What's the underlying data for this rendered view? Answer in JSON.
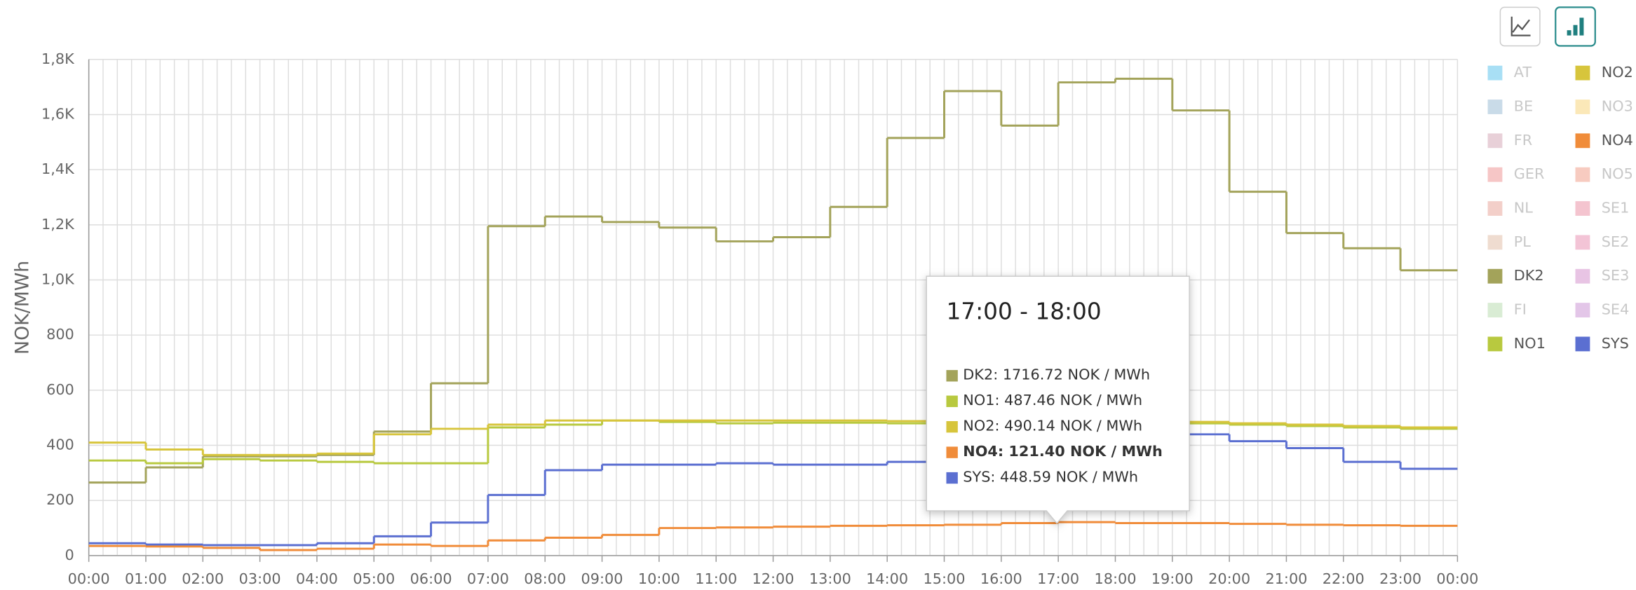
{
  "chart_data": {
    "type": "step-line",
    "y_label": "NOK/MWh",
    "x": [
      0,
      1,
      2,
      3,
      4,
      5,
      6,
      7,
      8,
      9,
      10,
      11,
      12,
      13,
      14,
      15,
      16,
      17,
      18,
      19,
      20,
      21,
      22,
      23
    ],
    "xlim": [
      0,
      24
    ],
    "xticks": [
      {
        "value": 0,
        "label": "00:00"
      },
      {
        "value": 1,
        "label": "01:00"
      },
      {
        "value": 2,
        "label": "02:00"
      },
      {
        "value": 3,
        "label": "03:00"
      },
      {
        "value": 4,
        "label": "04:00"
      },
      {
        "value": 5,
        "label": "05:00"
      },
      {
        "value": 6,
        "label": "06:00"
      },
      {
        "value": 7,
        "label": "07:00"
      },
      {
        "value": 8,
        "label": "08:00"
      },
      {
        "value": 9,
        "label": "09:00"
      },
      {
        "value": 10,
        "label": "10:00"
      },
      {
        "value": 11,
        "label": "11:00"
      },
      {
        "value": 12,
        "label": "12:00"
      },
      {
        "value": 13,
        "label": "13:00"
      },
      {
        "value": 14,
        "label": "14:00"
      },
      {
        "value": 15,
        "label": "15:00"
      },
      {
        "value": 16,
        "label": "16:00"
      },
      {
        "value": 17,
        "label": "17:00"
      },
      {
        "value": 18,
        "label": "18:00"
      },
      {
        "value": 19,
        "label": "19:00"
      },
      {
        "value": 20,
        "label": "20:00"
      },
      {
        "value": 21,
        "label": "21:00"
      },
      {
        "value": 22,
        "label": "22:00"
      },
      {
        "value": 23,
        "label": "23:00"
      },
      {
        "value": 24,
        "label": "00:00"
      }
    ],
    "ylim": [
      0,
      1800
    ],
    "yticks": [
      0,
      200,
      400,
      600,
      800,
      {
        "value": 1000,
        "label": "1,0K"
      },
      {
        "value": 1200,
        "label": "1,2K"
      },
      {
        "value": 1400,
        "label": "1,4K"
      },
      {
        "value": 1600,
        "label": "1,6K"
      },
      {
        "value": 1800,
        "label": "1,8K"
      }
    ],
    "grid": true,
    "series": [
      {
        "name": "DK2",
        "color": "#a3a35a",
        "values": [
          265,
          320,
          360,
          360,
          365,
          450,
          625,
          1195,
          1230,
          1210,
          1190,
          1140,
          1155,
          1265,
          1515,
          1685,
          1560,
          1716.72,
          1730,
          1615,
          1320,
          1170,
          1115,
          1035
        ]
      },
      {
        "name": "NO1",
        "color": "#b8c93f",
        "values": [
          345,
          335,
          350,
          345,
          340,
          335,
          335,
          465,
          475,
          490,
          485,
          480,
          482,
          482,
          480,
          480,
          482,
          487.46,
          485,
          480,
          475,
          470,
          465,
          460
        ]
      },
      {
        "name": "NO2",
        "color": "#d7c53c",
        "values": [
          410,
          385,
          365,
          365,
          370,
          440,
          460,
          475,
          490,
          490,
          490,
          490,
          490,
          490,
          488,
          490,
          490,
          490.14,
          490,
          485,
          480,
          475,
          470,
          465
        ]
      },
      {
        "name": "SYS",
        "color": "#5b6fd1",
        "values": [
          45,
          40,
          38,
          38,
          45,
          70,
          120,
          220,
          310,
          330,
          330,
          335,
          330,
          330,
          340,
          350,
          400,
          448.59,
          448,
          440,
          415,
          390,
          340,
          315
        ]
      },
      {
        "name": "NO4",
        "color": "#f08c3a",
        "values": [
          35,
          33,
          28,
          20,
          25,
          40,
          35,
          55,
          65,
          75,
          100,
          102,
          105,
          108,
          110,
          112,
          118,
          121.4,
          118,
          118,
          115,
          112,
          110,
          108
        ]
      }
    ],
    "tooltip": {
      "title": "17:00 - 18:00",
      "lines": [
        {
          "color": "#a3a35a",
          "text": "DK2: 1716.72 NOK / MWh"
        },
        {
          "color": "#b8c93f",
          "text": "NO1: 487.46 NOK / MWh"
        },
        {
          "color": "#d7c53c",
          "text": "NO2: 490.14 NOK / MWh"
        },
        {
          "color": "#f08c3a",
          "text": "NO4: 121.40 NOK / MWh",
          "bold": true
        },
        {
          "color": "#5b6fd1",
          "text": "SYS: 448.59 NOK / MWh"
        }
      ]
    },
    "legend": [
      [
        {
          "name": "AT",
          "color": "#a8dff5",
          "hidden": true
        },
        {
          "name": "BE",
          "color": "#c9dbe8",
          "hidden": true
        },
        {
          "name": "FR",
          "color": "#e8d0d8",
          "hidden": true
        },
        {
          "name": "GER",
          "color": "#f6c6c6",
          "hidden": true
        },
        {
          "name": "NL",
          "color": "#f3cfc9",
          "hidden": true
        },
        {
          "name": "PL",
          "color": "#efdcd0",
          "hidden": true
        },
        {
          "name": "DK2",
          "color": "#a3a35a",
          "hidden": false
        },
        {
          "name": "FI",
          "color": "#d9ecd4",
          "hidden": true
        },
        {
          "name": "NO1",
          "color": "#b8c93f",
          "hidden": false
        }
      ],
      [
        {
          "name": "NO2",
          "color": "#d7c53c",
          "hidden": false
        },
        {
          "name": "NO3",
          "color": "#fbe8b8",
          "hidden": true
        },
        {
          "name": "NO4",
          "color": "#f08c3a",
          "hidden": false
        },
        {
          "name": "NO5",
          "color": "#f7cbc0",
          "hidden": true
        },
        {
          "name": "SE1",
          "color": "#f4c4cf",
          "hidden": true
        },
        {
          "name": "SE2",
          "color": "#f3c4d6",
          "hidden": true
        },
        {
          "name": "SE3",
          "color": "#e8c4e4",
          "hidden": true
        },
        {
          "name": "SE4",
          "color": "#e3c6e8",
          "hidden": true
        },
        {
          "name": "SYS",
          "color": "#5b6fd1",
          "hidden": false
        }
      ]
    ]
  }
}
